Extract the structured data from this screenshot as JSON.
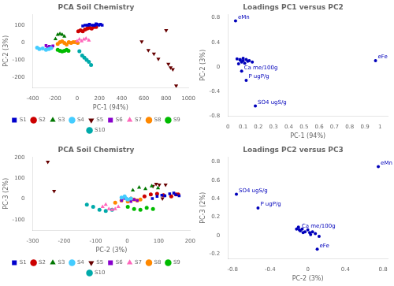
{
  "chart_data": [
    {
      "type": "scatter",
      "title": "PCA Soil Chemistry",
      "x_label": "PC-1 (94%)",
      "y_label": "PC-2 (3%)",
      "xlim": [
        -400,
        1000
      ],
      "ylim": [
        -260,
        160
      ],
      "xticks": [
        -400,
        -200,
        0,
        200,
        400,
        600,
        800,
        1000
      ],
      "yticks": [
        -200,
        -100,
        0,
        100
      ],
      "grid": false,
      "legend": "bottom",
      "series": [
        {
          "name": "S1",
          "color": "#0000cc",
          "marker": "square",
          "x": [
            50,
            70,
            90,
            100,
            110,
            130,
            150,
            160,
            170,
            180,
            195,
            210,
            225
          ],
          "y": [
            95,
            100,
            100,
            100,
            105,
            100,
            100,
            100,
            108,
            105,
            100,
            105,
            100
          ]
        },
        {
          "name": "S2",
          "color": "#cc0000",
          "marker": "circle",
          "x": [
            10,
            30,
            50,
            70,
            90,
            110,
            130,
            150,
            170
          ],
          "y": [
            65,
            70,
            65,
            75,
            80,
            85,
            80,
            90,
            90
          ]
        },
        {
          "name": "S3",
          "color": "#007700",
          "marker": "triangle-up",
          "x": [
            -195,
            -175,
            -155,
            -135,
            -115
          ],
          "y": [
            20,
            45,
            50,
            45,
            35
          ]
        },
        {
          "name": "S4",
          "color": "#44ccff",
          "marker": "circle",
          "x": [
            -360,
            -340,
            -310,
            -280,
            -255,
            -235
          ],
          "y": [
            -30,
            -38,
            -35,
            -42,
            -38,
            -32
          ]
        },
        {
          "name": "S5",
          "color": "#660000",
          "marker": "triangle-down",
          "x": [
            580,
            640,
            690,
            730,
            800,
            820,
            840,
            860,
            890
          ],
          "y": [
            5,
            -45,
            -65,
            -95,
            70,
            -125,
            -145,
            -155,
            -250
          ]
        },
        {
          "name": "S6",
          "color": "#8800cc",
          "marker": "square",
          "x": [
            -280,
            -265,
            -250,
            -240,
            -228,
            -218
          ],
          "y": [
            -18,
            -28,
            -22,
            -32,
            -26,
            -20
          ]
        },
        {
          "name": "S7",
          "color": "#ff66bb",
          "marker": "triangle-up",
          "x": [
            0,
            20,
            40,
            60,
            80,
            105
          ],
          "y": [
            8,
            18,
            8,
            18,
            22,
            12
          ]
        },
        {
          "name": "S8",
          "color": "#ff8800",
          "marker": "circle",
          "x": [
            -175,
            -155,
            -135,
            -115,
            -95,
            -75,
            -55,
            -35,
            -15,
            5
          ],
          "y": [
            -8,
            2,
            6,
            -3,
            -12,
            2,
            -3,
            2,
            2,
            -3
          ]
        },
        {
          "name": "S9",
          "color": "#00bb00",
          "marker": "circle",
          "x": [
            -175,
            -155,
            -135,
            -115,
            -95,
            -78
          ],
          "y": [
            -43,
            -48,
            -52,
            -48,
            -43,
            -48
          ]
        },
        {
          "name": "S10",
          "color": "#00aaaa",
          "marker": "circle",
          "x": [
            20,
            45,
            65,
            85,
            105,
            125
          ],
          "y": [
            -50,
            -75,
            -88,
            -100,
            -112,
            -130
          ]
        }
      ]
    },
    {
      "type": "scatter",
      "title": "Loadings PC1 versus PC2",
      "x_label": "PC-1 (94%)",
      "y_label": "PC-2 (3%)",
      "xlim": [
        0.0,
        1.05
      ],
      "ylim": [
        -0.8,
        0.85
      ],
      "xticks": [
        0.0,
        0.1,
        0.2,
        0.3,
        0.4,
        0.5,
        0.6,
        0.7,
        0.8,
        0.9,
        1.0
      ],
      "yticks": [
        -0.8,
        -0.4,
        0,
        0.4,
        0.8
      ],
      "grid": false,
      "series": [
        {
          "color": "#0000bb",
          "marker": "circle",
          "x": [
            0.06,
            0.08,
            0.1,
            0.12,
            0.14,
            0.16,
            0.09,
            0.11,
            0.07,
            0.13,
            0.1,
            0.08,
            0.05,
            0.97,
            0.18,
            0.09,
            0.12
          ],
          "y": [
            0.13,
            0.11,
            0.14,
            0.12,
            0.1,
            0.08,
            0.08,
            0.06,
            0.05,
            0.09,
            0.1,
            0.12,
            0.75,
            0.1,
            -0.64,
            -0.07,
            -0.22
          ]
        }
      ],
      "annotations": [
        {
          "text": "eMn",
          "x": 0.05,
          "y": 0.75
        },
        {
          "text": "eFe",
          "x": 0.97,
          "y": 0.1
        },
        {
          "text": "SO4 ugS/g",
          "x": 0.18,
          "y": -0.64
        },
        {
          "text": "Ca me/100g",
          "x": 0.09,
          "y": -0.07
        },
        {
          "text": "P ugP/g",
          "x": 0.12,
          "y": -0.22
        }
      ]
    },
    {
      "type": "scatter",
      "title": "PCA Soil Chemistry",
      "x_label": "PC-2 (3%)",
      "y_label": "PC-3 (2%)",
      "xlim": [
        -300,
        200
      ],
      "ylim": [
        -150,
        200
      ],
      "xticks": [
        -300,
        -200,
        -100,
        0,
        100,
        200
      ],
      "yticks": [
        -100,
        0,
        100,
        200
      ],
      "grid": false,
      "legend": "bottom",
      "series": [
        {
          "name": "S1",
          "color": "#0000cc",
          "marker": "square",
          "x": [
            80,
            95,
            110,
            120,
            135,
            148,
            155,
            165
          ],
          "y": [
            2,
            12,
            18,
            15,
            25,
            28,
            20,
            15
          ]
        },
        {
          "name": "S2",
          "color": "#cc0000",
          "marker": "circle",
          "x": [
            55,
            75,
            95,
            115,
            140,
            155,
            162
          ],
          "y": [
            12,
            22,
            25,
            18,
            12,
            22,
            22
          ]
        },
        {
          "name": "S3",
          "color": "#007700",
          "marker": "triangle-up",
          "x": [
            18,
            38,
            58,
            78,
            98
          ],
          "y": [
            42,
            55,
            48,
            62,
            52
          ]
        },
        {
          "name": "S4",
          "color": "#44ccff",
          "marker": "circle",
          "x": [
            -18,
            -8,
            -3,
            2,
            12
          ],
          "y": [
            7,
            12,
            2,
            -3,
            2
          ]
        },
        {
          "name": "S5",
          "color": "#660000",
          "marker": "triangle-down",
          "x": [
            -252,
            -232,
            82,
            92,
            102,
            112,
            122
          ],
          "y": [
            178,
            38,
            62,
            72,
            68,
            2,
            68
          ]
        },
        {
          "name": "S6",
          "color": "#8800cc",
          "marker": "square",
          "x": [
            -18,
            -8,
            2,
            12,
            22,
            32
          ],
          "y": [
            -8,
            2,
            -3,
            -12,
            -3,
            -8
          ]
        },
        {
          "name": "S7",
          "color": "#ff66bb",
          "marker": "triangle-up",
          "x": [
            -78,
            -68,
            -58,
            -48,
            -38,
            -28
          ],
          "y": [
            -38,
            -28,
            -48,
            -52,
            -48,
            -38
          ]
        },
        {
          "name": "S8",
          "color": "#ff8800",
          "marker": "circle",
          "x": [
            -38,
            -18,
            2,
            12,
            22,
            32,
            42
          ],
          "y": [
            -18,
            -8,
            -12,
            2,
            -3,
            -8,
            -3
          ]
        },
        {
          "name": "S9",
          "color": "#00bb00",
          "marker": "circle",
          "x": [
            2,
            22,
            42,
            62,
            82
          ],
          "y": [
            -38,
            -48,
            -52,
            -43,
            -48
          ]
        },
        {
          "name": "S10",
          "color": "#00aaaa",
          "marker": "circle",
          "x": [
            -128,
            -108,
            -88,
            -68,
            -48
          ],
          "y": [
            -28,
            -38,
            -52,
            -58,
            -52
          ]
        }
      ]
    },
    {
      "type": "scatter",
      "title": "Loadings PC2 versus PC3",
      "x_label": "PC-2 (3%)",
      "y_label": "PC-3 (2%)",
      "xlim": [
        -0.85,
        0.85
      ],
      "ylim": [
        -0.25,
        0.85
      ],
      "xticks": [
        -0.8,
        -0.4,
        0,
        0.4,
        0.8
      ],
      "yticks": [
        -0.2,
        0,
        0.2,
        0.4,
        0.6,
        0.8
      ],
      "grid": false,
      "series": [
        {
          "color": "#0000bb",
          "marker": "circle",
          "x": [
            -0.1,
            -0.12,
            -0.08,
            -0.05,
            0.0,
            0.05,
            0.08,
            0.12,
            -0.03,
            0.03,
            -0.06,
            0.02,
            0.75,
            0.1,
            -0.76,
            -0.53,
            -0.09
          ],
          "y": [
            0.09,
            0.07,
            0.05,
            0.03,
            0.06,
            0.04,
            0.02,
            -0.01,
            0.04,
            0.01,
            0.07,
            0.03,
            0.75,
            -0.15,
            0.45,
            0.3,
            0.06
          ]
        }
      ],
      "annotations": [
        {
          "text": "eMn",
          "x": 0.75,
          "y": 0.75
        },
        {
          "text": "eFe",
          "x": 0.1,
          "y": -0.15
        },
        {
          "text": "SO4 ugS/g",
          "x": -0.76,
          "y": 0.45
        },
        {
          "text": "P ugP/g",
          "x": -0.53,
          "y": 0.3
        },
        {
          "text": "Ca me/100g",
          "x": -0.09,
          "y": 0.06
        }
      ]
    }
  ]
}
